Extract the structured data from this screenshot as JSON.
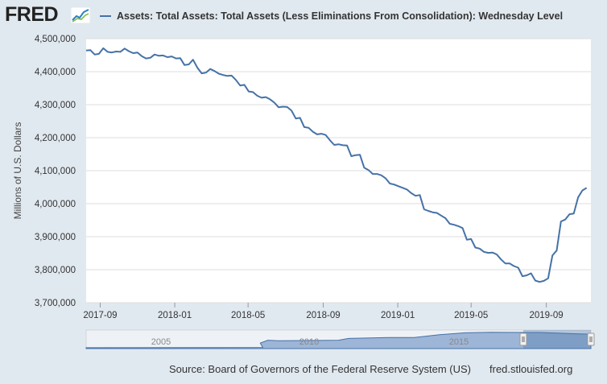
{
  "header": {
    "logo_text": "FRED",
    "series_title": "Assets: Total Assets: Total Assets (Less Eliminations From Consolidation): Wednesday Level"
  },
  "footer": {
    "source": "Source: Board of Governors of the Federal Reserve System (US)",
    "url": "fred.stlouisfed.org"
  },
  "colors": {
    "line": "#4572a7",
    "background": "#e1e9f0",
    "plot": "#ffffff",
    "grid": "#dddddd",
    "navigator_fill": "#9db5d7"
  },
  "icons": {
    "logo_graph": "line-graph-icon",
    "handles": "scroll-handle-icon"
  },
  "chart_data": {
    "type": "line",
    "title": "Assets: Total Assets: Total Assets (Less Eliminations From Consolidation): Wednesday Level",
    "xlabel": "",
    "ylabel": "Millions of U.S. Dollars",
    "xlim": [
      "2017-08-09",
      "2019-11-13"
    ],
    "ylim": [
      3700000,
      4500000
    ],
    "yticks": [
      3700000,
      3800000,
      3900000,
      4000000,
      4100000,
      4200000,
      4300000,
      4400000,
      4500000
    ],
    "ytick_labels": [
      "3,700,000",
      "3,800,000",
      "3,900,000",
      "4,000,000",
      "4,100,000",
      "4,200,000",
      "4,300,000",
      "4,400,000",
      "4,500,000"
    ],
    "xticks": [
      "2017-09-01",
      "2018-01-01",
      "2018-05-01",
      "2018-09-01",
      "2019-01-01",
      "2019-05-01",
      "2019-09-01"
    ],
    "xtick_labels": [
      "2017-09",
      "2018-01",
      "2018-05",
      "2018-09",
      "2019-01",
      "2019-05",
      "2019-09"
    ],
    "grid": true,
    "legend": "top-left",
    "series": [
      {
        "name": "Assets: Total Assets: Total Assets (Less Eliminations From Consolidation): Wednesday Level",
        "x_start": "2017-08-09",
        "x_step_days": 7,
        "values": [
          4464000,
          4465000,
          4452000,
          4454000,
          4471000,
          4460000,
          4458000,
          4461000,
          4460000,
          4470000,
          4462000,
          4456000,
          4458000,
          4447000,
          4440000,
          4442000,
          4452000,
          4448000,
          4449000,
          4444000,
          4446000,
          4440000,
          4441000,
          4420000,
          4422000,
          4436000,
          4412000,
          4395000,
          4397000,
          4408000,
          4402000,
          4394000,
          4390000,
          4387000,
          4388000,
          4375000,
          4358000,
          4360000,
          4340000,
          4338000,
          4327000,
          4321000,
          4323000,
          4316000,
          4306000,
          4292000,
          4294000,
          4293000,
          4282000,
          4258000,
          4260000,
          4232000,
          4230000,
          4218000,
          4210000,
          4212000,
          4208000,
          4192000,
          4178000,
          4180000,
          4177000,
          4176000,
          4144000,
          4147000,
          4148000,
          4109000,
          4102000,
          4090000,
          4090000,
          4086000,
          4077000,
          4061000,
          4058000,
          4053000,
          4048000,
          4043000,
          4032000,
          4024000,
          4026000,
          3983000,
          3978000,
          3974000,
          3972000,
          3964000,
          3956000,
          3939000,
          3936000,
          3932000,
          3926000,
          3891000,
          3893000,
          3867000,
          3864000,
          3854000,
          3851000,
          3852000,
          3846000,
          3831000,
          3819000,
          3819000,
          3811000,
          3806000,
          3780000,
          3783000,
          3789000,
          3767000,
          3763000,
          3766000,
          3774000,
          3843000,
          3858000,
          3946000,
          3952000,
          3968000,
          3970000,
          4019000,
          4040000,
          4048000
        ]
      }
    ],
    "navigator": {
      "labels": [
        "2005",
        "2010",
        "2015"
      ]
    }
  }
}
